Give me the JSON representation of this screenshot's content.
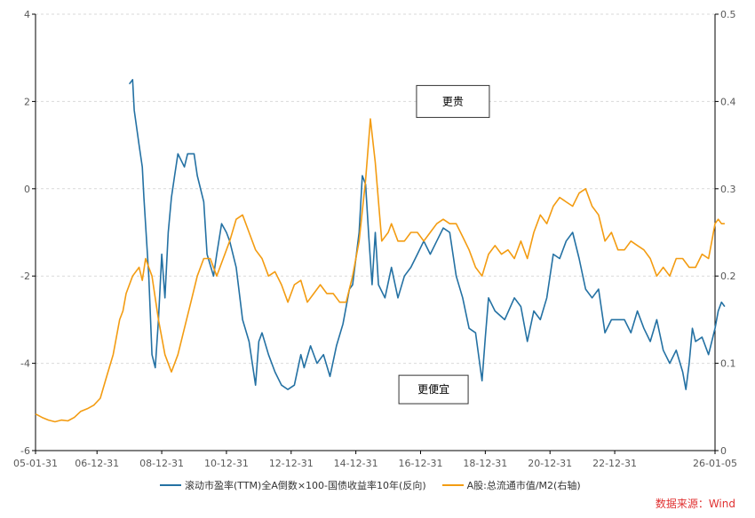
{
  "chart_data": {
    "type": "line",
    "title": "",
    "x_tick_labels": [
      "05-01-31",
      "06-12-31",
      "08-12-31",
      "10-12-31",
      "12-12-31",
      "14-12-31",
      "16-12-31",
      "18-12-31",
      "20-12-31",
      "22-12-31",
      "26-01-05"
    ],
    "x_tick_positions": [
      0,
      1.9,
      3.9,
      5.9,
      7.9,
      9.9,
      11.9,
      13.9,
      15.9,
      17.9,
      21.0
    ],
    "xlim": [
      0,
      21.0
    ],
    "left_axis": {
      "ylim": [
        -6,
        4
      ],
      "ticks": [
        -6,
        -4,
        -2,
        0,
        2,
        4
      ]
    },
    "right_axis": {
      "ylim": [
        0,
        0.5
      ],
      "ticks": [
        "0",
        "0.1",
        "0.2",
        "0.3",
        "0.4",
        "0.5"
      ]
    },
    "series": [
      {
        "name": "滚动市盈率(TTM)全A倒数×100-国债收益率10年(反向)",
        "axis": "left",
        "color": "#2471a3",
        "points": [
          [
            2.9,
            2.4
          ],
          [
            3.0,
            2.5
          ],
          [
            3.05,
            1.8
          ],
          [
            3.2,
            1.0
          ],
          [
            3.3,
            0.5
          ],
          [
            3.35,
            -0.2
          ],
          [
            3.5,
            -2.0
          ],
          [
            3.6,
            -3.8
          ],
          [
            3.7,
            -4.1
          ],
          [
            3.8,
            -3.0
          ],
          [
            3.9,
            -1.5
          ],
          [
            4.0,
            -2.5
          ],
          [
            4.1,
            -1.0
          ],
          [
            4.2,
            -0.2
          ],
          [
            4.3,
            0.3
          ],
          [
            4.4,
            0.8
          ],
          [
            4.6,
            0.5
          ],
          [
            4.7,
            0.8
          ],
          [
            4.9,
            0.8
          ],
          [
            5.0,
            0.3
          ],
          [
            5.2,
            -0.3
          ],
          [
            5.3,
            -1.5
          ],
          [
            5.5,
            -2.0
          ],
          [
            5.6,
            -1.5
          ],
          [
            5.75,
            -0.8
          ],
          [
            5.9,
            -1.0
          ],
          [
            6.0,
            -1.2
          ],
          [
            6.2,
            -1.8
          ],
          [
            6.4,
            -3.0
          ],
          [
            6.6,
            -3.5
          ],
          [
            6.8,
            -4.5
          ],
          [
            6.9,
            -3.5
          ],
          [
            7.0,
            -3.3
          ],
          [
            7.2,
            -3.8
          ],
          [
            7.4,
            -4.2
          ],
          [
            7.6,
            -4.5
          ],
          [
            7.8,
            -4.6
          ],
          [
            8.0,
            -4.5
          ],
          [
            8.2,
            -3.8
          ],
          [
            8.3,
            -4.1
          ],
          [
            8.5,
            -3.6
          ],
          [
            8.7,
            -4.0
          ],
          [
            8.9,
            -3.8
          ],
          [
            9.1,
            -4.3
          ],
          [
            9.3,
            -3.6
          ],
          [
            9.5,
            -3.1
          ],
          [
            9.7,
            -2.3
          ],
          [
            9.8,
            -2.2
          ],
          [
            10.0,
            -1.0
          ],
          [
            10.1,
            0.3
          ],
          [
            10.2,
            0.1
          ],
          [
            10.3,
            -1.1
          ],
          [
            10.4,
            -2.2
          ],
          [
            10.5,
            -1.0
          ],
          [
            10.6,
            -2.2
          ],
          [
            10.8,
            -2.5
          ],
          [
            11.0,
            -1.8
          ],
          [
            11.2,
            -2.5
          ],
          [
            11.4,
            -2.0
          ],
          [
            11.6,
            -1.8
          ],
          [
            11.8,
            -1.5
          ],
          [
            12.0,
            -1.2
          ],
          [
            12.2,
            -1.5
          ],
          [
            12.4,
            -1.2
          ],
          [
            12.6,
            -0.9
          ],
          [
            12.8,
            -1.0
          ],
          [
            13.0,
            -2.0
          ],
          [
            13.2,
            -2.5
          ],
          [
            13.4,
            -3.2
          ],
          [
            13.6,
            -3.3
          ],
          [
            13.8,
            -4.4
          ],
          [
            13.9,
            -3.4
          ],
          [
            14.0,
            -2.5
          ],
          [
            14.2,
            -2.8
          ],
          [
            14.5,
            -3.0
          ],
          [
            14.8,
            -2.5
          ],
          [
            15.0,
            -2.7
          ],
          [
            15.2,
            -3.5
          ],
          [
            15.4,
            -2.8
          ],
          [
            15.6,
            -3.0
          ],
          [
            15.8,
            -2.5
          ],
          [
            16.0,
            -1.5
          ],
          [
            16.2,
            -1.6
          ],
          [
            16.4,
            -1.2
          ],
          [
            16.6,
            -1.0
          ],
          [
            16.8,
            -1.6
          ],
          [
            17.0,
            -2.3
          ],
          [
            17.2,
            -2.5
          ],
          [
            17.4,
            -2.3
          ],
          [
            17.6,
            -3.3
          ],
          [
            17.8,
            -3.0
          ],
          [
            18.0,
            -3.0
          ],
          [
            18.2,
            -3.0
          ],
          [
            18.4,
            -3.3
          ],
          [
            18.6,
            -2.8
          ],
          [
            18.8,
            -3.2
          ],
          [
            19.0,
            -3.5
          ],
          [
            19.2,
            -3.0
          ],
          [
            19.4,
            -3.7
          ],
          [
            19.6,
            -4.0
          ],
          [
            19.8,
            -3.7
          ],
          [
            20.0,
            -4.2
          ],
          [
            20.1,
            -4.6
          ],
          [
            20.2,
            -4.0
          ],
          [
            20.3,
            -3.2
          ],
          [
            20.4,
            -3.5
          ],
          [
            20.6,
            -3.4
          ],
          [
            20.8,
            -3.8
          ],
          [
            21.0,
            -3.2
          ],
          [
            21.1,
            -2.8
          ],
          [
            21.2,
            -2.6
          ],
          [
            21.3,
            -2.7
          ]
        ]
      },
      {
        "name": "A股:总流通市值/M2(右轴)",
        "axis": "right",
        "color": "#f39c12",
        "points": [
          [
            0.0,
            0.042
          ],
          [
            0.2,
            0.038
          ],
          [
            0.4,
            0.035
          ],
          [
            0.6,
            0.033
          ],
          [
            0.8,
            0.035
          ],
          [
            1.0,
            0.034
          ],
          [
            1.2,
            0.038
          ],
          [
            1.4,
            0.045
          ],
          [
            1.6,
            0.048
          ],
          [
            1.8,
            0.052
          ],
          [
            2.0,
            0.06
          ],
          [
            2.2,
            0.085
          ],
          [
            2.4,
            0.11
          ],
          [
            2.6,
            0.15
          ],
          [
            2.7,
            0.16
          ],
          [
            2.8,
            0.18
          ],
          [
            3.0,
            0.2
          ],
          [
            3.2,
            0.21
          ],
          [
            3.3,
            0.195
          ],
          [
            3.4,
            0.22
          ],
          [
            3.5,
            0.21
          ],
          [
            3.6,
            0.2
          ],
          [
            3.8,
            0.15
          ],
          [
            4.0,
            0.11
          ],
          [
            4.2,
            0.09
          ],
          [
            4.4,
            0.11
          ],
          [
            4.6,
            0.14
          ],
          [
            4.8,
            0.17
          ],
          [
            5.0,
            0.2
          ],
          [
            5.2,
            0.22
          ],
          [
            5.4,
            0.22
          ],
          [
            5.6,
            0.2
          ],
          [
            5.8,
            0.22
          ],
          [
            6.0,
            0.24
          ],
          [
            6.2,
            0.265
          ],
          [
            6.4,
            0.27
          ],
          [
            6.6,
            0.25
          ],
          [
            6.8,
            0.23
          ],
          [
            7.0,
            0.22
          ],
          [
            7.2,
            0.2
          ],
          [
            7.4,
            0.205
          ],
          [
            7.6,
            0.19
          ],
          [
            7.8,
            0.17
          ],
          [
            8.0,
            0.19
          ],
          [
            8.2,
            0.195
          ],
          [
            8.4,
            0.17
          ],
          [
            8.6,
            0.18
          ],
          [
            8.8,
            0.19
          ],
          [
            9.0,
            0.18
          ],
          [
            9.2,
            0.18
          ],
          [
            9.4,
            0.17
          ],
          [
            9.6,
            0.17
          ],
          [
            9.8,
            0.2
          ],
          [
            10.0,
            0.24
          ],
          [
            10.2,
            0.31
          ],
          [
            10.35,
            0.38
          ],
          [
            10.5,
            0.33
          ],
          [
            10.7,
            0.24
          ],
          [
            10.9,
            0.25
          ],
          [
            11.0,
            0.26
          ],
          [
            11.2,
            0.24
          ],
          [
            11.4,
            0.24
          ],
          [
            11.6,
            0.25
          ],
          [
            11.8,
            0.25
          ],
          [
            12.0,
            0.24
          ],
          [
            12.2,
            0.25
          ],
          [
            12.4,
            0.26
          ],
          [
            12.6,
            0.265
          ],
          [
            12.8,
            0.26
          ],
          [
            13.0,
            0.26
          ],
          [
            13.2,
            0.245
          ],
          [
            13.4,
            0.23
          ],
          [
            13.6,
            0.21
          ],
          [
            13.8,
            0.2
          ],
          [
            14.0,
            0.225
          ],
          [
            14.2,
            0.235
          ],
          [
            14.4,
            0.225
          ],
          [
            14.6,
            0.23
          ],
          [
            14.8,
            0.22
          ],
          [
            15.0,
            0.24
          ],
          [
            15.2,
            0.22
          ],
          [
            15.4,
            0.25
          ],
          [
            15.6,
            0.27
          ],
          [
            15.8,
            0.26
          ],
          [
            16.0,
            0.28
          ],
          [
            16.2,
            0.29
          ],
          [
            16.4,
            0.285
          ],
          [
            16.6,
            0.28
          ],
          [
            16.8,
            0.295
          ],
          [
            17.0,
            0.3
          ],
          [
            17.2,
            0.28
          ],
          [
            17.4,
            0.27
          ],
          [
            17.6,
            0.24
          ],
          [
            17.8,
            0.25
          ],
          [
            18.0,
            0.23
          ],
          [
            18.2,
            0.23
          ],
          [
            18.4,
            0.24
          ],
          [
            18.6,
            0.235
          ],
          [
            18.8,
            0.23
          ],
          [
            19.0,
            0.22
          ],
          [
            19.2,
            0.2
          ],
          [
            19.4,
            0.21
          ],
          [
            19.6,
            0.2
          ],
          [
            19.8,
            0.22
          ],
          [
            20.0,
            0.22
          ],
          [
            20.2,
            0.21
          ],
          [
            20.4,
            0.21
          ],
          [
            20.6,
            0.225
          ],
          [
            20.8,
            0.22
          ],
          [
            20.9,
            0.24
          ],
          [
            21.0,
            0.26
          ],
          [
            21.1,
            0.265
          ],
          [
            21.2,
            0.26
          ],
          [
            21.3,
            0.26
          ]
        ]
      }
    ],
    "annotations": [
      {
        "text": "更贵",
        "x": 12.9,
        "y_left": 2.0
      },
      {
        "text": "更便宜",
        "x": 12.3,
        "y_left": -4.6
      }
    ]
  },
  "legend": {
    "series1": "滚动市盈率(TTM)全A倒数×100-国债收益率10年(反向)",
    "series2": "A股:总流通市值/M2(右轴)"
  },
  "source": "数据来源：Wind"
}
